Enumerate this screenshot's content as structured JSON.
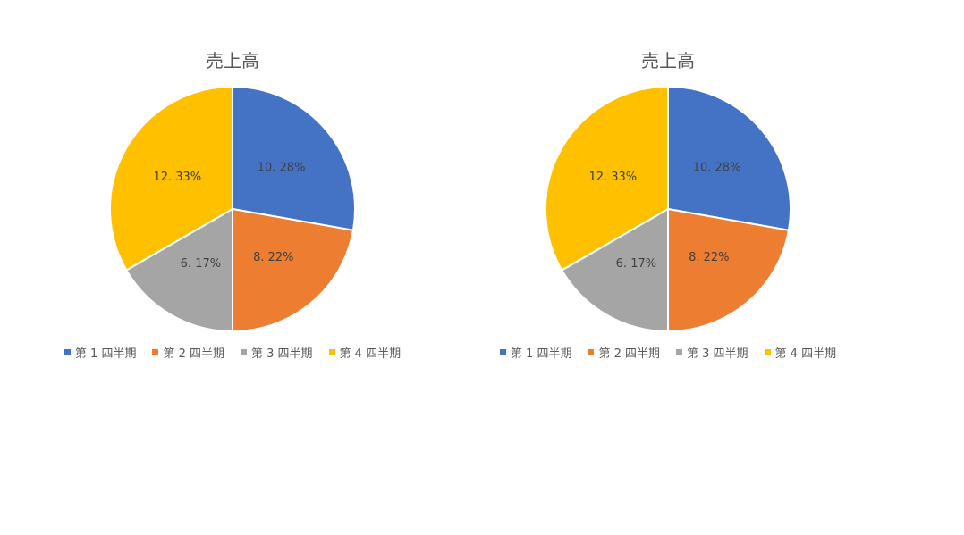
{
  "chart_data": [
    {
      "type": "pie",
      "title": "売上高",
      "categories": [
        "第 1 四半期",
        "第 2 四半期",
        "第 3 四半期",
        "第 4 四半期"
      ],
      "values": [
        10,
        8,
        6,
        12
      ],
      "data_labels": [
        "10. 28%",
        "8. 22%",
        "6. 17%",
        "12. 33%"
      ],
      "colors": [
        "#4472C4",
        "#ED7D31",
        "#A5A5A5",
        "#FFC000"
      ],
      "legend": "bottom"
    },
    {
      "type": "pie",
      "title": "売上高",
      "categories": [
        "第 1 四半期",
        "第 2 四半期",
        "第 3 四半期",
        "第 4 四半期"
      ],
      "values": [
        10,
        8,
        6,
        12
      ],
      "data_labels": [
        "10. 28%",
        "8. 22%",
        "6. 17%",
        "12. 33%"
      ],
      "colors": [
        "#4472C4",
        "#ED7D31",
        "#A5A5A5",
        "#FFC000"
      ],
      "legend": "bottom"
    }
  ]
}
